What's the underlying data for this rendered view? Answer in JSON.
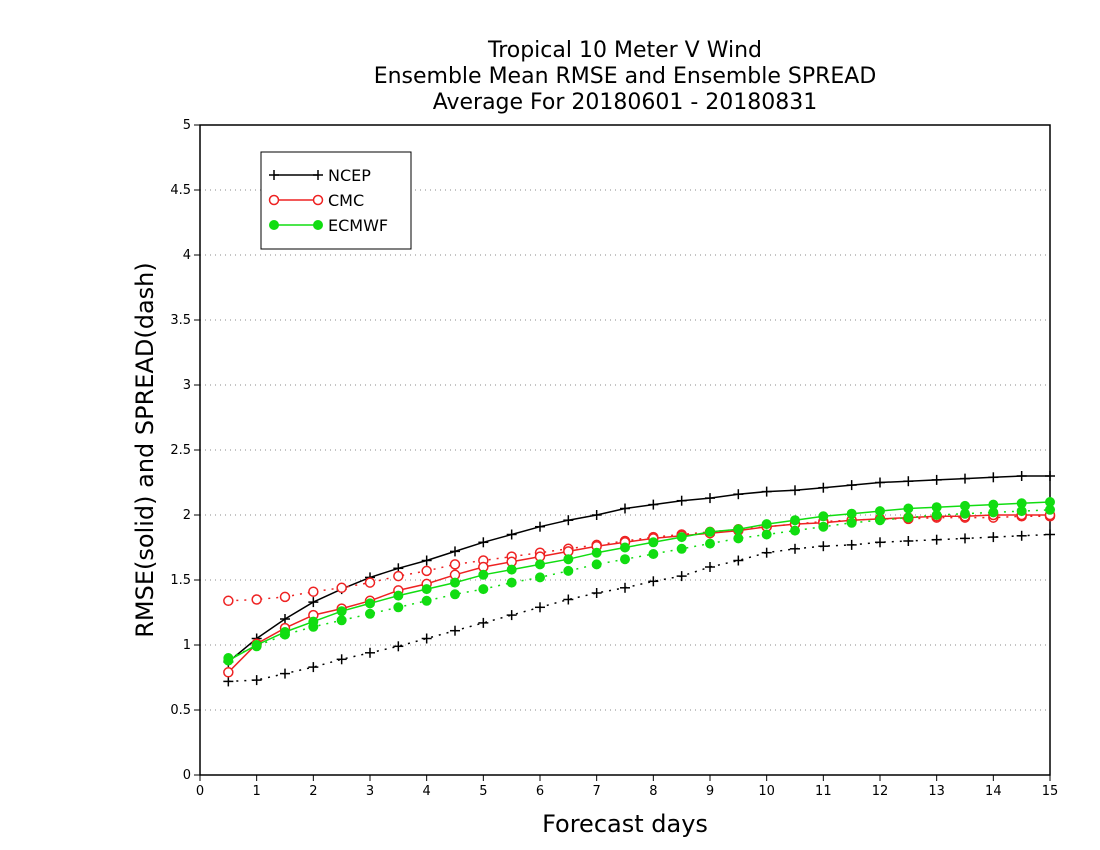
{
  "chart_data": {
    "type": "line",
    "title": [
      "Tropical 10 Meter V Wind",
      "Ensemble Mean RMSE and Ensemble SPREAD",
      "Average For 20180601 - 20180831"
    ],
    "xlabel": "Forecast days",
    "ylabel": "RMSE(solid) and SPREAD(dash)",
    "xlim": [
      0,
      15
    ],
    "ylim": [
      0,
      5
    ],
    "xticks": [
      0,
      1,
      2,
      3,
      4,
      5,
      6,
      7,
      8,
      9,
      10,
      11,
      12,
      13,
      14,
      15
    ],
    "yticks": [
      0,
      0.5,
      1,
      1.5,
      2,
      2.5,
      3,
      3.5,
      4,
      4.5,
      5
    ],
    "ytick_labels": [
      "0",
      "0.5",
      "1",
      "1.5",
      "2",
      "2.5",
      "3",
      "3.5",
      "4",
      "4.5",
      "5"
    ],
    "grid": "horizontal dotted",
    "legend_position": "top-left",
    "x": [
      0.5,
      1,
      1.5,
      2,
      2.5,
      3,
      3.5,
      4,
      4.5,
      5,
      5.5,
      6,
      6.5,
      7,
      7.5,
      8,
      8.5,
      9,
      9.5,
      10,
      10.5,
      11,
      11.5,
      12,
      12.5,
      13,
      13.5,
      14,
      14.5,
      15
    ],
    "series": [
      {
        "name": "NCEP",
        "color": "#000000",
        "marker": "plus",
        "rmse": [
          0.87,
          1.05,
          1.2,
          1.33,
          1.43,
          1.52,
          1.59,
          1.65,
          1.72,
          1.79,
          1.85,
          1.91,
          1.96,
          2.0,
          2.05,
          2.08,
          2.11,
          2.13,
          2.16,
          2.18,
          2.19,
          2.21,
          2.23,
          2.25,
          2.26,
          2.27,
          2.28,
          2.29,
          2.3,
          2.3
        ],
        "spread": [
          0.72,
          0.73,
          0.78,
          0.83,
          0.89,
          0.94,
          0.99,
          1.05,
          1.11,
          1.17,
          1.23,
          1.29,
          1.35,
          1.4,
          1.44,
          1.49,
          1.53,
          1.6,
          1.65,
          1.71,
          1.74,
          1.76,
          1.77,
          1.79,
          1.8,
          1.81,
          1.82,
          1.83,
          1.84,
          1.85
        ]
      },
      {
        "name": "CMC",
        "color": "#ee2222",
        "marker": "open-circle",
        "rmse": [
          0.79,
          1.01,
          1.13,
          1.23,
          1.28,
          1.34,
          1.42,
          1.47,
          1.54,
          1.6,
          1.64,
          1.68,
          1.72,
          1.76,
          1.79,
          1.82,
          1.84,
          1.86,
          1.88,
          1.91,
          1.93,
          1.94,
          1.96,
          1.97,
          1.98,
          1.99,
          1.99,
          2.0,
          2.0,
          2.0
        ],
        "spread": [
          1.34,
          1.35,
          1.37,
          1.41,
          1.44,
          1.48,
          1.53,
          1.57,
          1.62,
          1.65,
          1.68,
          1.71,
          1.74,
          1.77,
          1.8,
          1.83,
          1.85,
          1.87,
          1.89,
          1.91,
          1.93,
          1.95,
          1.96,
          1.97,
          1.97,
          1.98,
          1.98,
          1.98,
          1.99,
          1.99
        ]
      },
      {
        "name": "ECMWF",
        "color": "#11dd11",
        "marker": "filled-circle",
        "rmse": [
          0.88,
          1.0,
          1.1,
          1.18,
          1.26,
          1.32,
          1.38,
          1.43,
          1.48,
          1.54,
          1.58,
          1.62,
          1.66,
          1.71,
          1.75,
          1.79,
          1.83,
          1.87,
          1.89,
          1.93,
          1.96,
          1.99,
          2.01,
          2.03,
          2.05,
          2.06,
          2.07,
          2.08,
          2.09,
          2.1
        ],
        "spread": [
          0.9,
          0.99,
          1.08,
          1.14,
          1.19,
          1.24,
          1.29,
          1.34,
          1.39,
          1.43,
          1.48,
          1.52,
          1.57,
          1.62,
          1.66,
          1.7,
          1.74,
          1.78,
          1.82,
          1.85,
          1.88,
          1.91,
          1.94,
          1.96,
          1.98,
          2.0,
          2.01,
          2.02,
          2.03,
          2.04
        ]
      }
    ]
  }
}
